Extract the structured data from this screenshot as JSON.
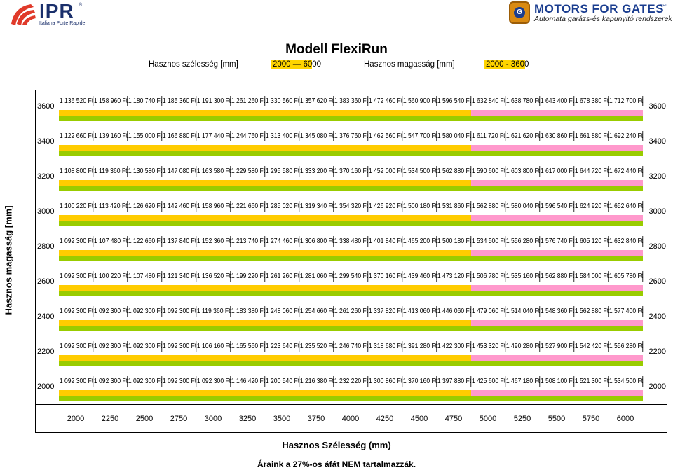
{
  "header": {
    "left_logo": {
      "name": "IPR",
      "reg": "®",
      "sub": "Italiana Porte Rapide",
      "icon": "ipr-swoosh-icon",
      "color": "#1a2f6b"
    },
    "right_logo": {
      "name": "MOTORS FOR GATES",
      "kft": "KFT.",
      "tagline": "Automata garázs-és kapunyitó rendszerek",
      "icon": "gear-badge-icon",
      "color": "#1a3d8f"
    }
  },
  "title": "Modell FlexiRun",
  "subheader": {
    "width_label": "Hasznos szélesség [mm]",
    "width_range": "2000 — 6000",
    "height_label": "Hasznos magasság [mm]",
    "height_range": "2000 - 3600"
  },
  "colors": {
    "yellow": "#ffcc00",
    "green": "#99cc00",
    "pink": "#ff99cc",
    "highlight": "#ffd400"
  },
  "table": {
    "rows": [
      {
        "height": "3600",
        "prices": [
          "1 136 520 Ft",
          "1 158 960 Ft",
          "1 180 740 Ft",
          "1 185 360 Ft",
          "1 191 300 Ft",
          "1 261 260 Ft",
          "1 330 560 Ft",
          "1 357 620 Ft",
          "1 383 360 Ft",
          "1 472 460 Ft",
          "1 560 900 Ft",
          "1 596 540 Ft",
          "1 632 840 Ft",
          "1 638 780 Ft",
          "1 643 400 Ft",
          "1 678 380 Ft",
          "1 712 700 Ft"
        ]
      },
      {
        "height": "3400",
        "prices": [
          "1 122 660 Ft",
          "1 139 160 Ft",
          "1 155 000 Ft",
          "1 166 880 Ft",
          "1 177 440 Ft",
          "1 244 760 Ft",
          "1 313 400 Ft",
          "1 345 080 Ft",
          "1 376 760 Ft",
          "1 462 560 Ft",
          "1 547 700 Ft",
          "1 580 040 Ft",
          "1 611 720 Ft",
          "1 621 620 Ft",
          "1 630 860 Ft",
          "1 661 880 Ft",
          "1 692 240 Ft"
        ]
      },
      {
        "height": "3200",
        "prices": [
          "1 108 800 Ft",
          "1 119 360 Ft",
          "1 130 580 Ft",
          "1 147 080 Ft",
          "1 163 580 Ft",
          "1 229 580 Ft",
          "1 295 580 Ft",
          "1 333 200 Ft",
          "1 370 160 Ft",
          "1 452 000 Ft",
          "1 534 500 Ft",
          "1 562 880 Ft",
          "1 590 600 Ft",
          "1 603 800 Ft",
          "1 617 000 Ft",
          "1 644 720 Ft",
          "1 672 440 Ft"
        ]
      },
      {
        "height": "3000",
        "prices": [
          "1 100 220 Ft",
          "1 113 420 Ft",
          "1 126 620 Ft",
          "1 142 460 Ft",
          "1 158 960 Ft",
          "1 221 660 Ft",
          "1 285 020 Ft",
          "1 319 340 Ft",
          "1 354 320 Ft",
          "1 426 920 Ft",
          "1 500 180 Ft",
          "1 531 860 Ft",
          "1 562 880 Ft",
          "1 580 040 Ft",
          "1 596 540 Ft",
          "1 624 920 Ft",
          "1 652 640 Ft"
        ]
      },
      {
        "height": "2800",
        "prices": [
          "1 092 300 Ft",
          "1 107 480 Ft",
          "1 122 660 Ft",
          "1 137 840 Ft",
          "1 152 360 Ft",
          "1 213 740 Ft",
          "1 274 460 Ft",
          "1 306 800 Ft",
          "1 338 480 Ft",
          "1 401 840 Ft",
          "1 465 200 Ft",
          "1 500 180 Ft",
          "1 534 500 Ft",
          "1 556 280 Ft",
          "1 576 740 Ft",
          "1 605 120 Ft",
          "1 632 840 Ft"
        ]
      },
      {
        "height": "2600",
        "prices": [
          "1 092 300 Ft",
          "1 100 220 Ft",
          "1 107 480 Ft",
          "1 121 340 Ft",
          "1 136 520 Ft",
          "1 199 220 Ft",
          "1 261 260 Ft",
          "1 281 060 Ft",
          "1 299 540 Ft",
          "1 370 160 Ft",
          "1 439 460 Ft",
          "1 473 120 Ft",
          "1 506 780 Ft",
          "1 535 160 Ft",
          "1 562 880 Ft",
          "1 584 000 Ft",
          "1 605 780 Ft"
        ]
      },
      {
        "height": "2400",
        "prices": [
          "1 092 300 Ft",
          "1 092 300 Ft",
          "1 092 300 Ft",
          "1 092 300 Ft",
          "1 119 360 Ft",
          "1 183 380 Ft",
          "1 248 060 Ft",
          "1 254 660 Ft",
          "1 261 260 Ft",
          "1 337 820 Ft",
          "1 413 060 Ft",
          "1 446 060 Ft",
          "1 479 060 Ft",
          "1 514 040 Ft",
          "1 548 360 Ft",
          "1 562 880 Ft",
          "1 577 400 Ft"
        ]
      },
      {
        "height": "2200",
        "prices": [
          "1 092 300 Ft",
          "1 092 300 Ft",
          "1 092 300 Ft",
          "1 092 300 Ft",
          "1 106 160 Ft",
          "1 165 560 Ft",
          "1 223 640 Ft",
          "1 235 520 Ft",
          "1 246 740 Ft",
          "1 318 680 Ft",
          "1 391 280 Ft",
          "1 422 300 Ft",
          "1 453 320 Ft",
          "1 490 280 Ft",
          "1 527 900 Ft",
          "1 542 420 Ft",
          "1 556 280 Ft"
        ]
      },
      {
        "height": "2000",
        "prices": [
          "1 092 300 Ft",
          "1 092 300 Ft",
          "1 092 300 Ft",
          "1 092 300 Ft",
          "1 092 300 Ft",
          "1 146 420 Ft",
          "1 200 540 Ft",
          "1 216 380 Ft",
          "1 232 220 Ft",
          "1 300 860 Ft",
          "1 370 160 Ft",
          "1 397 880 Ft",
          "1 425 600 Ft",
          "1 467 180 Ft",
          "1 508 100 Ft",
          "1 521 300 Ft",
          "1 534 500 Ft"
        ]
      }
    ],
    "width_labels": [
      "2000",
      "2250",
      "2500",
      "2750",
      "3000",
      "3250",
      "3500",
      "3750",
      "4000",
      "4250",
      "4500",
      "4750",
      "5000",
      "5250",
      "5500",
      "5750",
      "6000"
    ],
    "band_colors": [
      "#99cc00",
      "#99cc00",
      "#99cc00",
      "#99cc00",
      "#99cc00",
      "#99cc00",
      "#99cc00",
      "#99cc00",
      "#99cc00",
      "#99cc00",
      "#99cc00",
      "#99cc00",
      "#99cc00",
      "#99cc00",
      "#99cc00",
      "#99cc00",
      "#99cc00"
    ]
  },
  "y_axis_title": "Hasznos magasság [mm]",
  "x_axis_title": "Hasznos Szélesség (mm)",
  "footnote": "Áraink a 27%-os áfát NEM tartalmazzák."
}
